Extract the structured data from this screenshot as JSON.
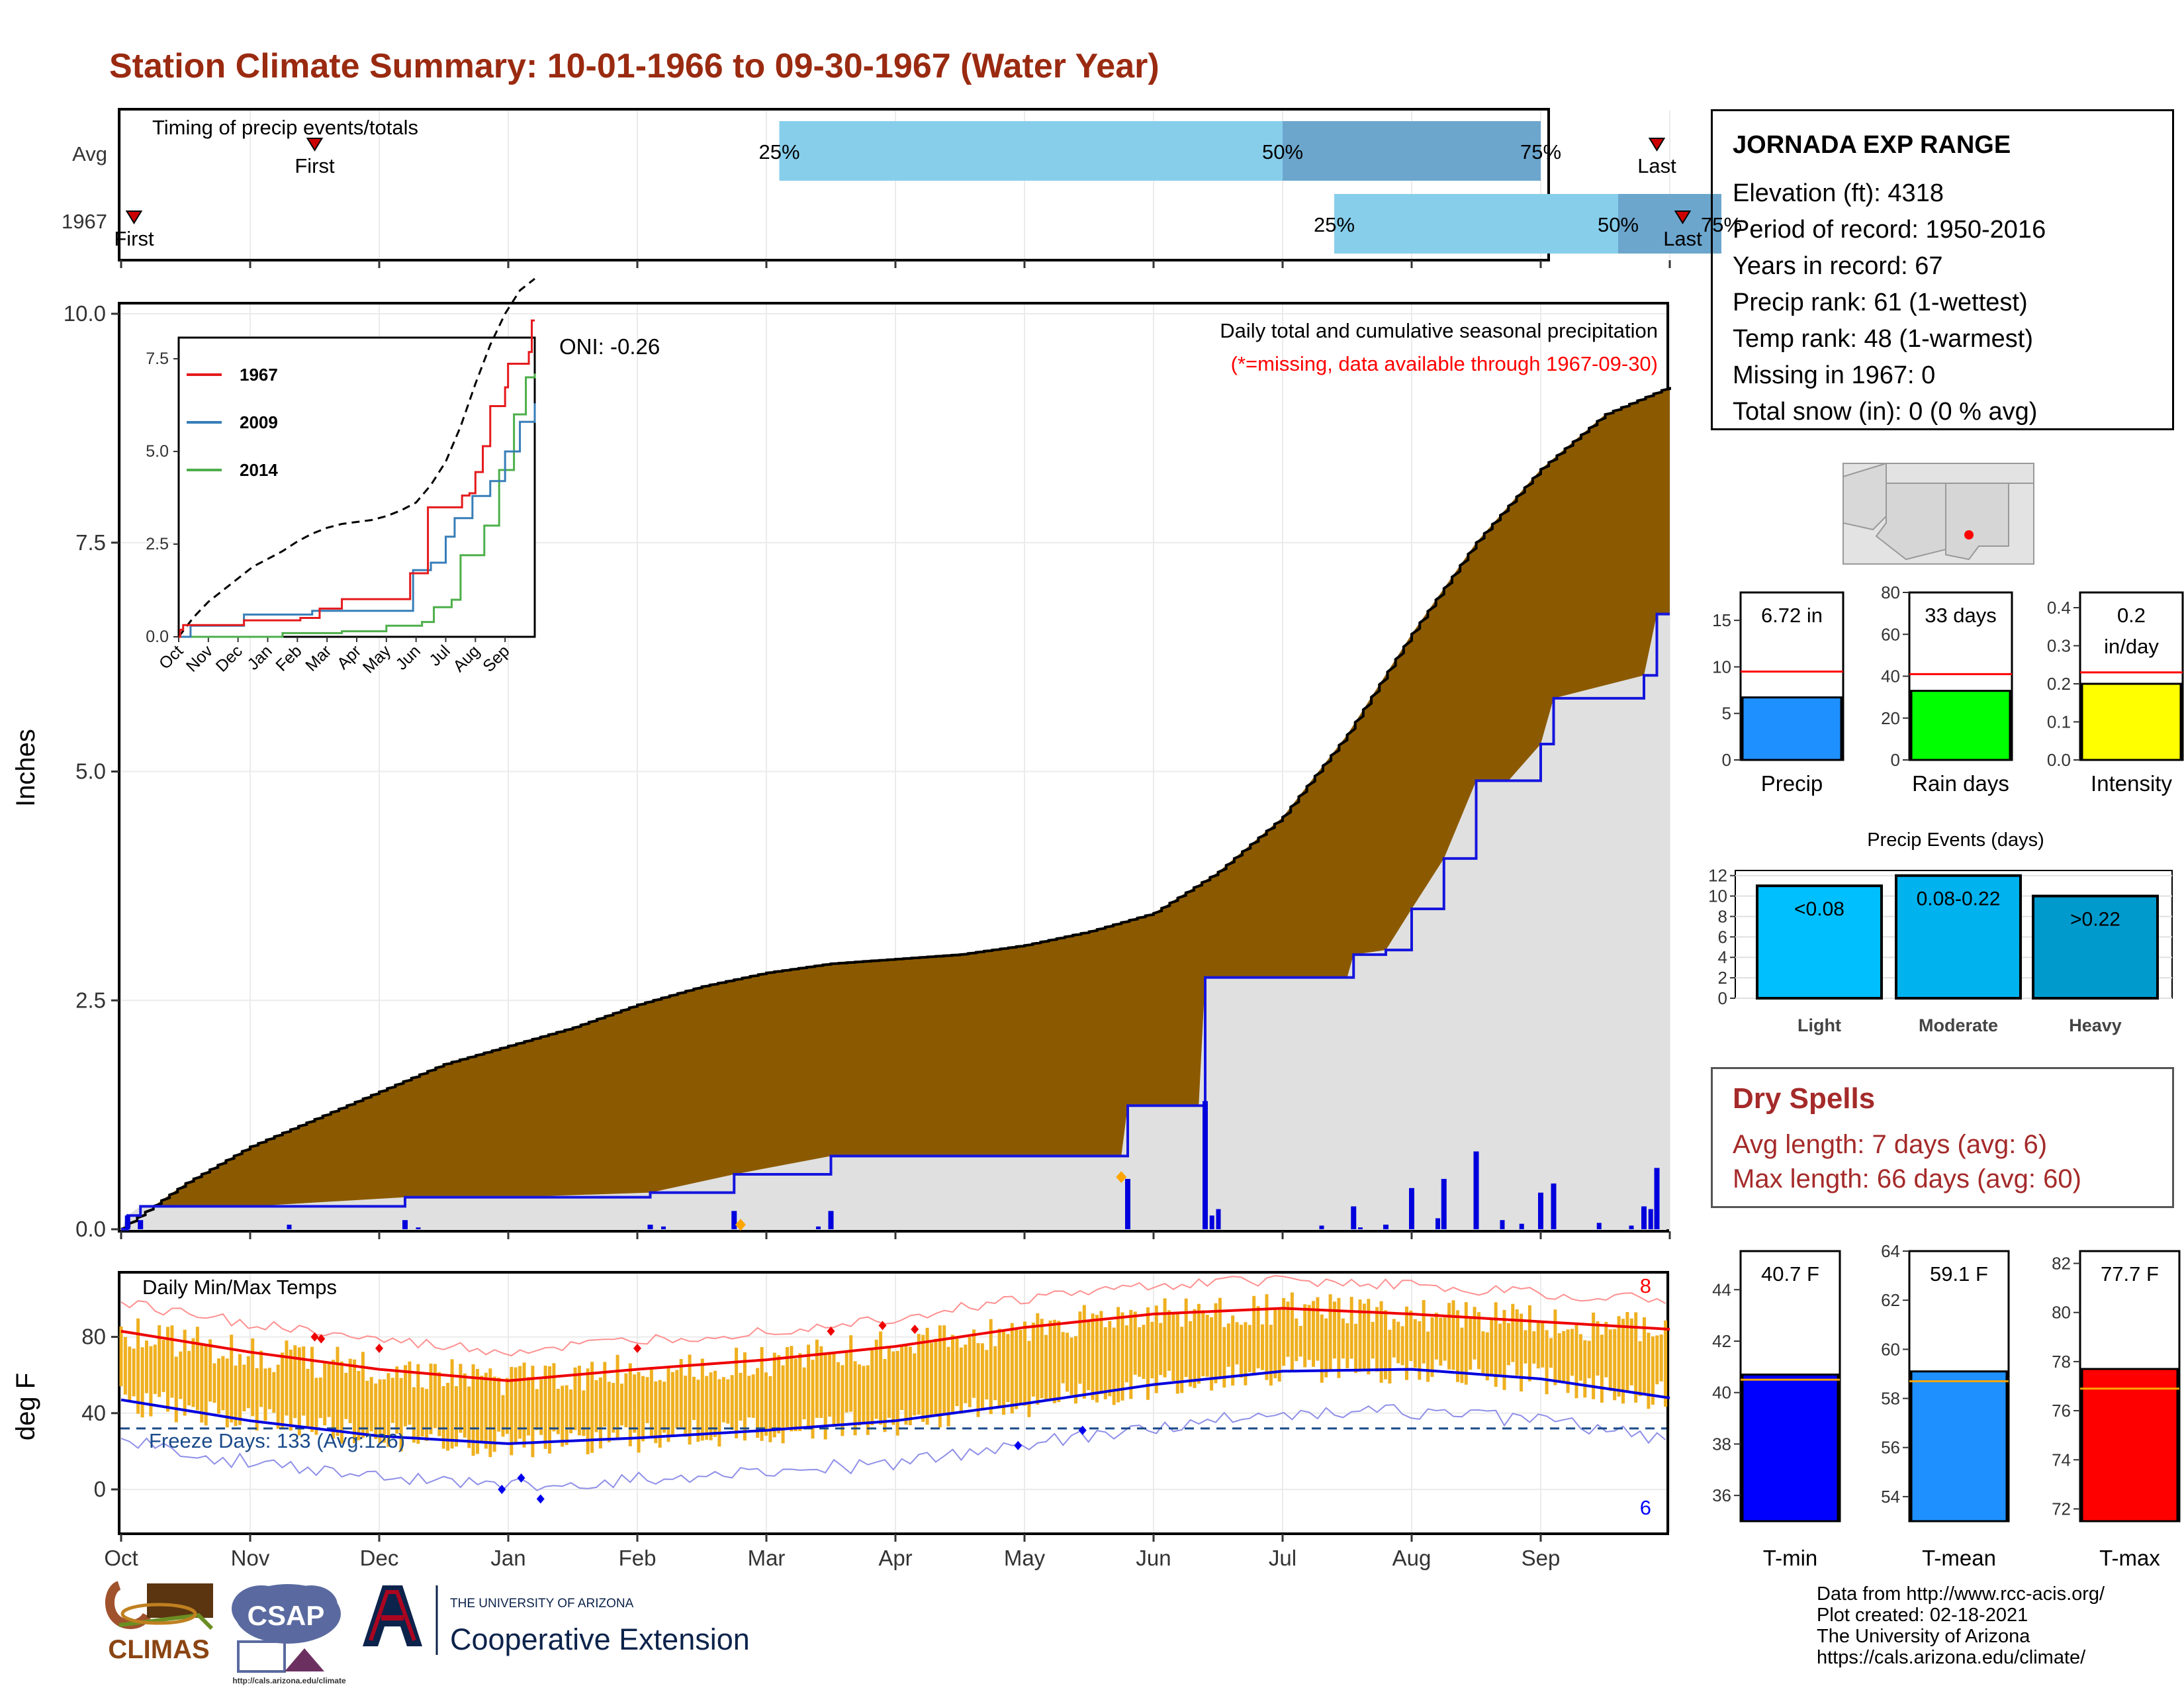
{
  "title": "Station Climate Summary: 10-01-1966 to 09-30-1967 (Water Year)",
  "timing": {
    "label": "Timing of precip events/totals",
    "rows": [
      {
        "label": "Avg",
        "first_label": "First",
        "last_label": "Last",
        "first_month": 1.5,
        "last_month": 11.9,
        "p25": 5.1,
        "p50": 9.0,
        "p75": 11.0
      },
      {
        "label": "1967",
        "first_label": "First",
        "last_label": "Last",
        "first_month": 0.1,
        "last_month": 12.1,
        "p25": 9.4,
        "p50": 11.6,
        "p75": 12.4
      }
    ],
    "pct_labels": [
      "25%",
      "50%",
      "75%"
    ]
  },
  "station": {
    "name": "JORNADA EXP RANGE",
    "lines": [
      "Elevation (ft): 4318",
      "Period of record: 1950-2016",
      "Years in record: 67",
      "Precip rank: 61 (1-wettest)",
      "Temp rank: 48 (1-warmest)",
      "Missing in 1967: 0",
      "Total snow (in): 0 (0 % avg)"
    ]
  },
  "precip_panel": {
    "title": "Daily total and cumulative seasonal precipitation",
    "subtitle": "(*=missing, data available through 1967-09-30)",
    "oni": "ONI: -0.26",
    "ylabel": "Inches",
    "yticks": [
      "0.0",
      "2.5",
      "5.0",
      "7.5",
      "10.0"
    ]
  },
  "temp_panel": {
    "title": "Daily Min/Max Temps",
    "ylabel": "deg F",
    "yticks": [
      "0",
      "40",
      "80"
    ],
    "freeze": "Freeze Days: 133 (Avg:126)",
    "count_hi": "8",
    "count_lo": "6"
  },
  "months": [
    "Oct",
    "Nov",
    "Dec",
    "Jan",
    "Feb",
    "Mar",
    "Apr",
    "May",
    "Jun",
    "Jul",
    "Aug",
    "Sep"
  ],
  "inset": {
    "months": [
      "Oct",
      "Nov",
      "Dec",
      "Jan",
      "Feb",
      "Mar",
      "Apr",
      "May",
      "Jun",
      "Jul",
      "Aug",
      "Sep"
    ],
    "yticks": [
      "0.0",
      "2.5",
      "5.0",
      "7.5"
    ],
    "legend": [
      {
        "name": "1967",
        "color": "#e41a1c"
      },
      {
        "name": "2009",
        "color": "#377eb8"
      },
      {
        "name": "2014",
        "color": "#4daf4a"
      }
    ]
  },
  "bars_small": [
    {
      "label": "Precip",
      "value_text": "6.72 in",
      "value": 6.72,
      "avg": 9.5,
      "ymax": 18,
      "ticks": [
        "0",
        "5",
        "10",
        "15"
      ],
      "color": "#1e90ff"
    },
    {
      "label": "Rain days",
      "value_text": "33 days",
      "value": 33,
      "avg": 41,
      "ymax": 80,
      "ticks": [
        "0",
        "20",
        "40",
        "60",
        "80"
      ],
      "color": "#00ff00"
    },
    {
      "label": "Intensity",
      "value_text": "0.2 in/day",
      "value_line1": "0.2",
      "value_line2": "in/day",
      "value": 0.2,
      "avg": 0.23,
      "ymax": 0.44,
      "ticks": [
        "0.0",
        "0.1",
        "0.2",
        "0.3",
        "0.4"
      ],
      "color": "#ffff00"
    }
  ],
  "events": {
    "title": "Precip Events (days)",
    "ticks": [
      "0",
      "2",
      "4",
      "6",
      "8",
      "10",
      "12"
    ],
    "bars": [
      {
        "cat": "Light",
        "label": "<0.08",
        "value": 11,
        "color": "#00bfff"
      },
      {
        "cat": "Moderate",
        "label": "0.08-0.22",
        "value": 12,
        "color": "#00b2ee"
      },
      {
        "cat": "Heavy",
        "label": ">0.22",
        "value": 10,
        "color": "#009acd"
      }
    ]
  },
  "dry_spells": {
    "title": "Dry Spells",
    "avg": "Avg length: 7 days (avg: 6)",
    "max": "Max length: 66 days (avg: 60)"
  },
  "temp_bars": [
    {
      "label": "T-min",
      "value_text": "40.7 F",
      "value": 40.7,
      "avg": 40.5,
      "ymin": 35,
      "ymax": 45.5,
      "ticks": [
        "36",
        "38",
        "40",
        "42",
        "44"
      ],
      "color": "#0000ff"
    },
    {
      "label": "T-mean",
      "value_text": "59.1 F",
      "value": 59.1,
      "avg": 58.7,
      "ymin": 53,
      "ymax": 64,
      "ticks": [
        "54",
        "56",
        "58",
        "60",
        "62",
        "64"
      ],
      "color": "#1e90ff"
    },
    {
      "label": "T-max",
      "value_text": "77.7 F",
      "value": 77.7,
      "avg": 76.9,
      "ymin": 71.5,
      "ymax": 82.5,
      "ticks": [
        "72",
        "74",
        "76",
        "78",
        "80",
        "82"
      ],
      "color": "#ff0000"
    }
  ],
  "credits": [
    "Data from http://www.rcc-acis.org/",
    "Plot created: 02-18-2021",
    "The University of Arizona",
    "https://cals.arizona.edu/climate/"
  ],
  "logos": {
    "climas": "CLIMAS",
    "csap": "CSAP",
    "csap_url": "http://cals.arizona.edu/climate",
    "ua_small": "THE UNIVERSITY OF ARIZONA",
    "ua_big": "Cooperative Extension"
  },
  "chart_data": [
    {
      "type": "area",
      "title": "Daily total and cumulative seasonal precipitation",
      "ylabel": "Inches",
      "ylim": [
        0,
        10
      ],
      "x_unit": "month index since Oct 1 (0-12)",
      "series": [
        {
          "name": "Avg cumulative",
          "x": [
            0,
            0.5,
            1,
            1.5,
            2,
            2.5,
            3,
            3.5,
            4,
            4.5,
            5,
            5.5,
            6,
            6.5,
            7,
            7.5,
            8,
            8.5,
            9,
            9.5,
            10,
            10.5,
            11,
            11.5,
            12
          ],
          "values": [
            0,
            0.5,
            0.9,
            1.2,
            1.5,
            1.8,
            2.0,
            2.2,
            2.45,
            2.65,
            2.8,
            2.9,
            2.95,
            3.0,
            3.1,
            3.25,
            3.45,
            3.9,
            4.5,
            5.4,
            6.5,
            7.5,
            8.3,
            8.9,
            9.2
          ]
        },
        {
          "name": "1967 cumulative",
          "x": [
            0,
            0.05,
            0.15,
            1.0,
            2.2,
            3.0,
            4.1,
            4.75,
            5.5,
            7.75,
            7.8,
            8.35,
            8.4,
            9.5,
            9.55,
            9.8,
            10.0,
            10.25,
            10.5,
            10.75,
            11.0,
            11.1,
            11.8,
            11.9,
            12.0
          ],
          "values": [
            0,
            0.15,
            0.25,
            0.25,
            0.35,
            0.35,
            0.4,
            0.6,
            0.8,
            0.8,
            1.35,
            1.35,
            2.75,
            2.75,
            3.0,
            3.05,
            3.5,
            4.05,
            4.9,
            4.9,
            5.3,
            5.8,
            6.05,
            6.72,
            6.72
          ]
        }
      ]
    },
    {
      "type": "line",
      "title": "Daily Min/Max Temps",
      "ylabel": "deg F",
      "x_unit": "month index since Oct 1 (0-12)",
      "series": [
        {
          "name": "Avg max",
          "x": [
            0,
            1,
            2,
            3,
            4,
            5,
            6,
            7,
            8,
            9,
            10,
            11,
            12
          ],
          "values": [
            83,
            72,
            63,
            57,
            63,
            68,
            75,
            85,
            92,
            95,
            92,
            88,
            84
          ]
        },
        {
          "name": "Avg min",
          "x": [
            0,
            1,
            2,
            3,
            4,
            5,
            6,
            7,
            8,
            9,
            10,
            11,
            12
          ],
          "values": [
            47,
            36,
            28,
            24,
            27,
            31,
            36,
            45,
            55,
            62,
            63,
            58,
            48
          ]
        }
      ]
    }
  ]
}
